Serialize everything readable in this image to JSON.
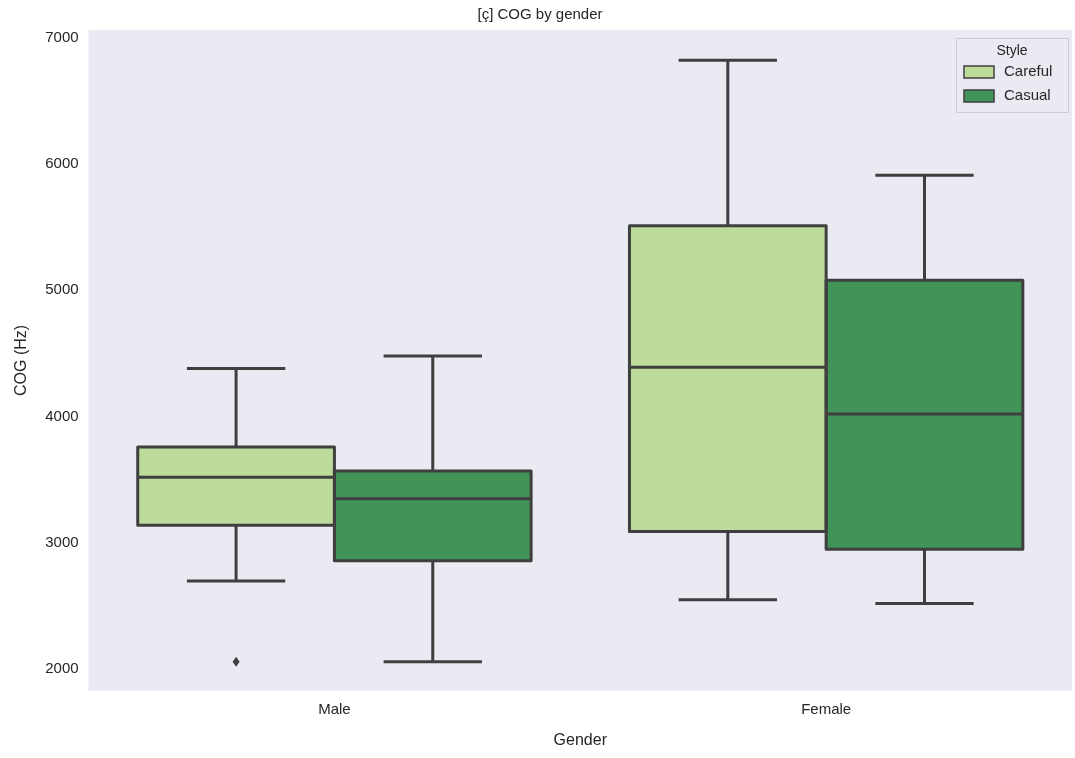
{
  "chart_data": {
    "type": "box",
    "title": "[ç] COG by gender",
    "xlabel": "Gender",
    "ylabel": "COG (Hz)",
    "legend_title": "Style",
    "categories": [
      "Male",
      "Female"
    ],
    "ylim": [
      1830,
      7060
    ],
    "yticks": [
      2000,
      3000,
      4000,
      5000,
      6000,
      7000
    ],
    "grid": false,
    "legend": "top right",
    "series": [
      {
        "name": "Careful",
        "color": "#bddb9b",
        "boxes": [
          {
            "low": 2700,
            "q1": 3140,
            "median": 3520,
            "q3": 3760,
            "high": 4380,
            "outliers": [
              2060
            ]
          },
          {
            "low": 2550,
            "q1": 3090,
            "median": 4390,
            "q3": 5510,
            "high": 6820
          }
        ]
      },
      {
        "name": "Casual",
        "color": "#419357",
        "boxes": [
          {
            "low": 2060,
            "q1": 2860,
            "median": 3350,
            "q3": 3570,
            "high": 4480
          },
          {
            "low": 2520,
            "q1": 2950,
            "median": 4020,
            "q3": 5080,
            "high": 5910
          }
        ]
      }
    ]
  }
}
